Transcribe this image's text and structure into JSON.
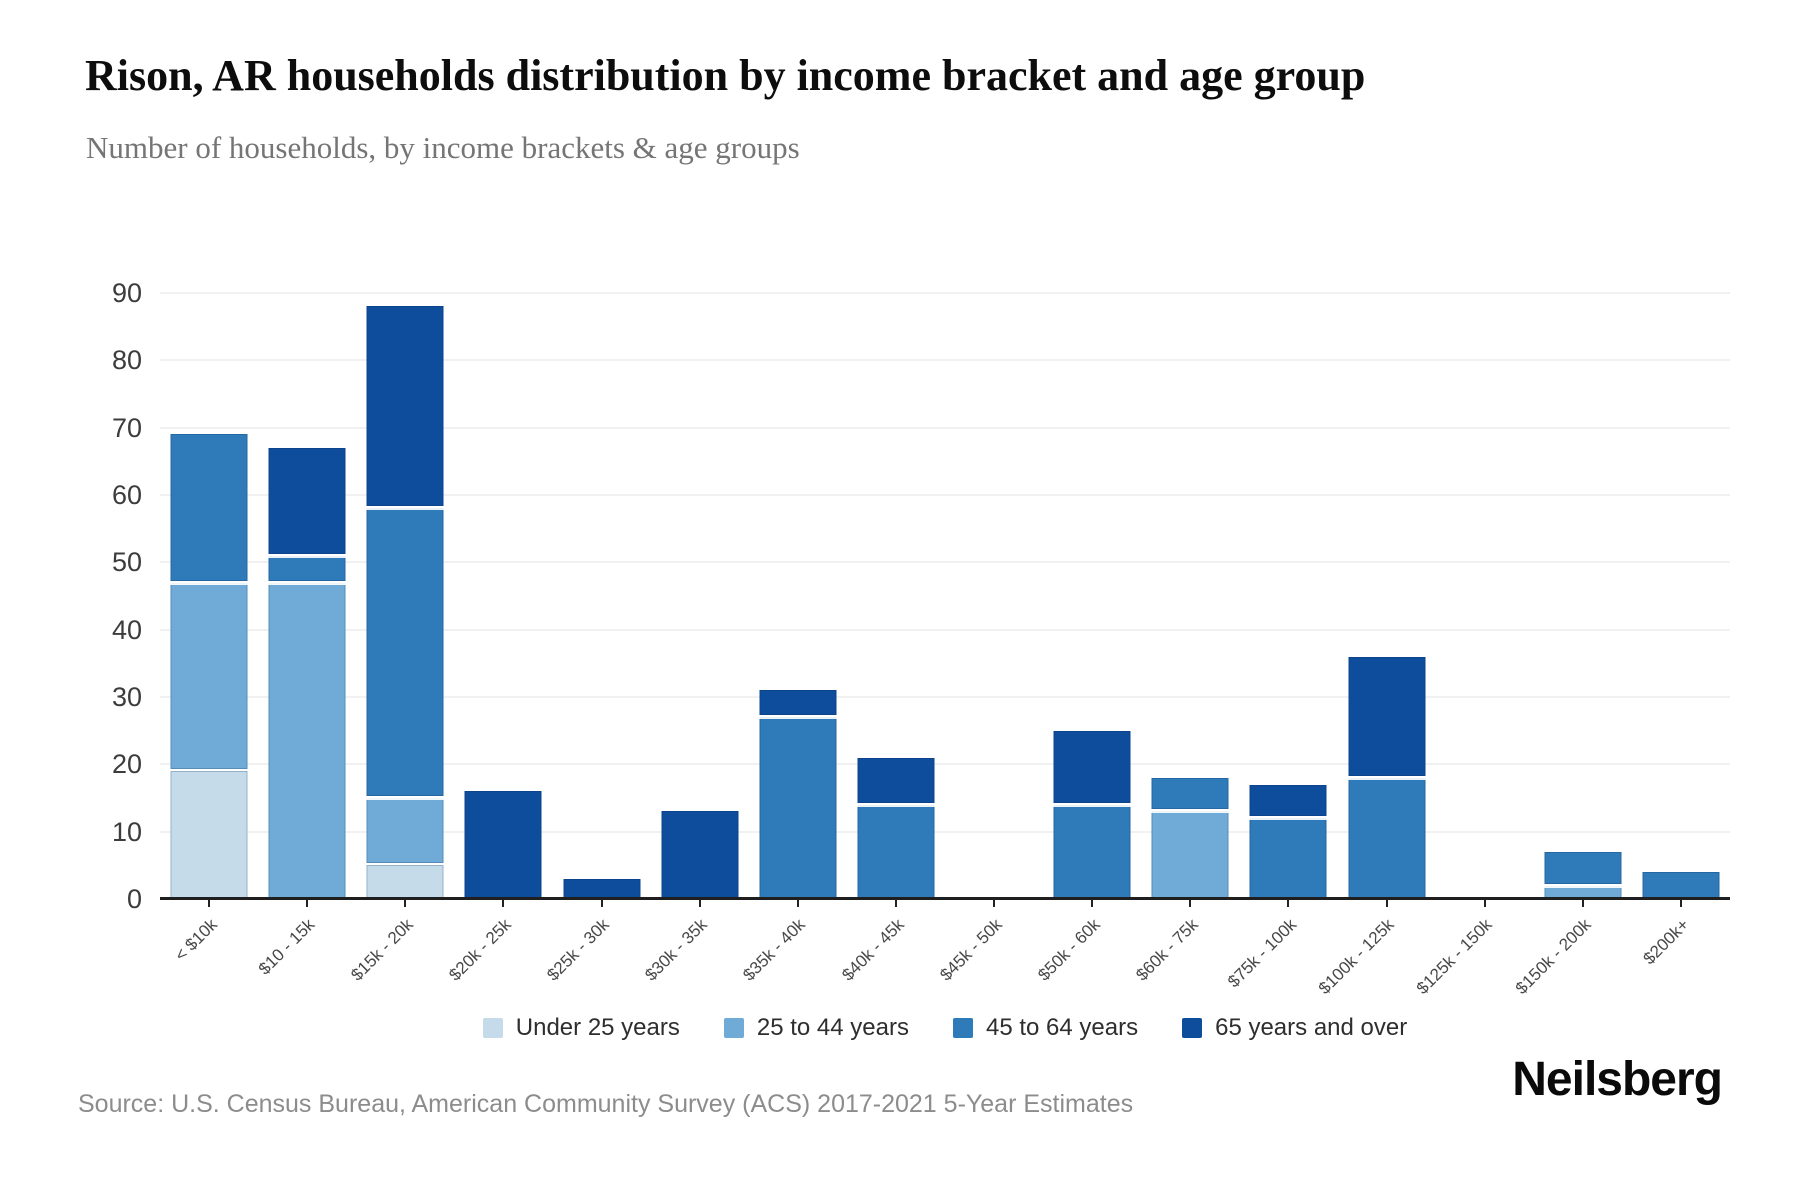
{
  "header": {
    "title": "Rison, AR households distribution by income bracket and age group",
    "subtitle": "Number of households, by income brackets & age groups"
  },
  "chart_data": {
    "type": "bar",
    "stacked": true,
    "title": "Rison, AR households distribution by income bracket and age group",
    "xlabel": "",
    "ylabel": "",
    "ylim": [
      0,
      90
    ],
    "yticks": [
      0,
      10,
      20,
      30,
      40,
      50,
      60,
      70,
      80,
      90
    ],
    "grid": true,
    "legend_position": "bottom",
    "categories": [
      "< $10k",
      "$10 - 15k",
      "$15k - 20k",
      "$20k - 25k",
      "$25k - 30k",
      "$30k - 35k",
      "$35k - 40k",
      "$40k - 45k",
      "$45k - 50k",
      "$50k - 60k",
      "$60k - 75k",
      "$75k - 100k",
      "$100k - 125k",
      "$125k - 150k",
      "$150k - 200k",
      "$200k+"
    ],
    "series": [
      {
        "name": "Under 25 years",
        "color": "#c6dbea",
        "values": [
          19,
          0,
          5,
          0,
          0,
          0,
          0,
          0,
          0,
          0,
          0,
          0,
          0,
          0,
          0,
          0
        ]
      },
      {
        "name": "25 to 44 years",
        "color": "#6fabd6",
        "values": [
          28,
          47,
          10,
          0,
          0,
          0,
          0,
          0,
          0,
          0,
          13,
          0,
          0,
          0,
          2,
          0
        ]
      },
      {
        "name": "45 to 64 years",
        "color": "#2f7ab8",
        "values": [
          22,
          4,
          43,
          0,
          0,
          0,
          27,
          14,
          0,
          14,
          5,
          12,
          18,
          0,
          5,
          4
        ]
      },
      {
        "name": "65 years and over",
        "color": "#0e4c9c",
        "values": [
          0,
          16,
          30,
          16,
          3,
          13,
          4,
          7,
          0,
          11,
          0,
          5,
          18,
          0,
          0,
          0
        ]
      }
    ]
  },
  "footer": {
    "source": "Source: U.S. Census Bureau, American Community Survey (ACS) 2017-2021 5-Year Estimates",
    "logo": "Neilsberg"
  }
}
